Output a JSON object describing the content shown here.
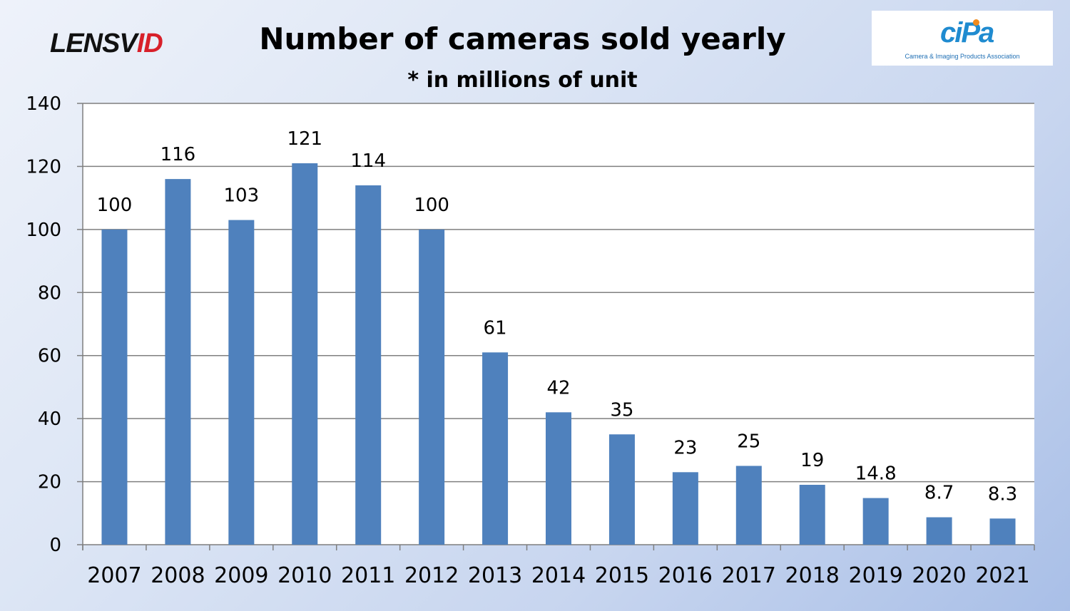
{
  "brand": {
    "part1": "LENSV",
    "part2": "ID"
  },
  "logo": {
    "word": "ciPa",
    "caption": "Camera & Imaging Products Association"
  },
  "colors": {
    "bar": "#4f81bd",
    "grid": "#7f7f7f",
    "plot_bg": "#ffffff"
  },
  "chart_data": {
    "type": "bar",
    "title": "Number of cameras sold yearly",
    "subtitle": "* in millions of unit",
    "categories": [
      "2007",
      "2008",
      "2009",
      "2010",
      "2011",
      "2012",
      "2013",
      "2014",
      "2015",
      "2016",
      "2017",
      "2018",
      "2019",
      "2020",
      "2021"
    ],
    "values": [
      100,
      116,
      103,
      121,
      114,
      100,
      61,
      42,
      35,
      23,
      25,
      19,
      14.8,
      8.7,
      8.3
    ],
    "data_labels": [
      "100",
      "116",
      "103",
      "121",
      "114",
      "100",
      "61",
      "42",
      "35",
      "23",
      "25",
      "19",
      "14.8",
      "8.7",
      "8.3"
    ],
    "ylim": [
      0,
      140
    ],
    "yticks": [
      0,
      20,
      40,
      60,
      80,
      100,
      120,
      140
    ],
    "grid": true,
    "legend": "none"
  }
}
